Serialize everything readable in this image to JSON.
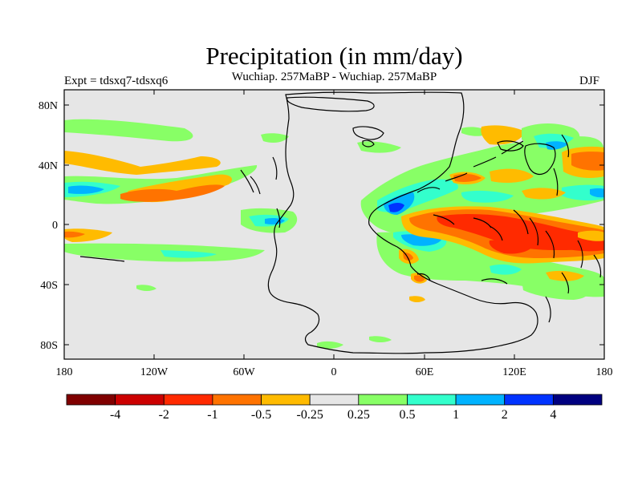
{
  "header": {
    "title": "Precipitation (in mm/day)",
    "subtitle": "Wuchiap. 257MaBP - Wuchiap. 257MaBP",
    "left_label": "Expt = tdsxq7-tdsxq6",
    "right_label": "DJF"
  },
  "map": {
    "lat_ticks": [
      "80N",
      "40N",
      "0",
      "40S",
      "80S"
    ],
    "lon_ticks": [
      "180",
      "120W",
      "60W",
      "0",
      "60E",
      "120E",
      "180"
    ],
    "background_color": "#e6e6e6"
  },
  "colorbar": {
    "labels": [
      "-4",
      "-2",
      "-1",
      "-0.5",
      "-0.25",
      "0.25",
      "0.5",
      "1",
      "2",
      "4"
    ],
    "colors": [
      "#800000",
      "#cc0000",
      "#ff2a00",
      "#ff7300",
      "#ffbb00",
      "#e6e6e6",
      "#88ff66",
      "#33ffcc",
      "#00b3ff",
      "#0033ff",
      "#000080"
    ]
  }
}
